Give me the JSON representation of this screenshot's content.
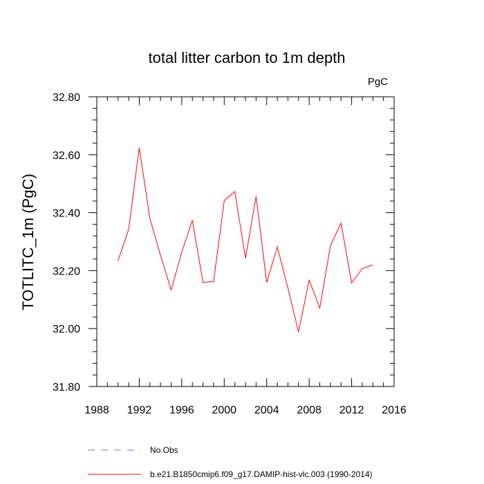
{
  "chart_data": {
    "type": "line",
    "title": "total litter carbon to 1m depth",
    "units": "PgC",
    "xlabel": "",
    "ylabel": "TOTLITC_1m  (PgC)",
    "xlim": [
      1988,
      2016
    ],
    "ylim": [
      31.8,
      32.8
    ],
    "xticks": [
      "1988",
      "1992",
      "1996",
      "2000",
      "2004",
      "2008",
      "2012",
      "2016"
    ],
    "yticks": [
      "31.80",
      "32.00",
      "32.20",
      "32.40",
      "32.60",
      "32.80"
    ],
    "legend_position": "bottom",
    "series": [
      {
        "name": "No Obs",
        "color": "#6f6fe0",
        "dashed": true,
        "x": [],
        "y": []
      },
      {
        "name": "b.e21.B1850cmip6.f09_g17.DAMIP-hist-vlc.003 (1990-2014)",
        "color": "#ff0000",
        "dashed": false,
        "x": [
          1990,
          1991,
          1992,
          1993,
          1994,
          1995,
          1996,
          1997,
          1998,
          1999,
          2000,
          2001,
          2002,
          2003,
          2004,
          2005,
          2006,
          2007,
          2008,
          2009,
          2010,
          2011,
          2012,
          2013,
          2014
        ],
        "y": [
          32.234,
          32.344,
          32.624,
          32.38,
          32.253,
          32.133,
          32.264,
          32.374,
          32.159,
          32.162,
          32.441,
          32.473,
          32.243,
          32.456,
          32.159,
          32.282,
          32.14,
          31.988,
          32.167,
          32.071,
          32.286,
          32.364,
          32.158,
          32.207,
          32.22
        ]
      }
    ]
  }
}
